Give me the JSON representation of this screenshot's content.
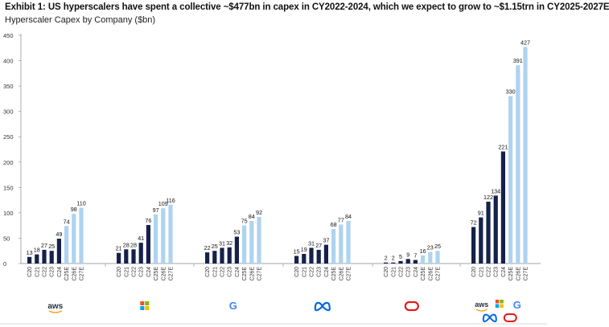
{
  "title": "Exhibit 1: US hyperscalers have spent a collective ~$477bn in capex in CY2022-2024, which we expect to grow to ~$1.15trn in CY2025-2027E",
  "subtitle": "Hyperscaler Capex by Company ($bn)",
  "colors": {
    "actual": "#14214b",
    "estimate": "#aed3ef",
    "axis": "#888888",
    "grid": "#d8d8d8"
  },
  "chart_data": {
    "type": "bar",
    "ylim": [
      0,
      450
    ],
    "yticks": [
      0,
      50,
      100,
      150,
      200,
      250,
      300,
      350,
      400,
      450
    ],
    "groups": [
      {
        "icon": "aws-logo",
        "icon_text": "aws",
        "categories": [
          "C20",
          "C21",
          "C22",
          "C23",
          "C24",
          "C25E",
          "C26E",
          "C27E"
        ],
        "values": [
          13,
          18,
          27,
          25,
          49,
          74,
          98,
          110
        ]
      },
      {
        "icon": "microsoft-logo",
        "icon_text": "",
        "categories": [
          "C20",
          "C21",
          "C22",
          "C23",
          "C24",
          "C25E",
          "C26E",
          "C27E"
        ],
        "values": [
          21,
          28,
          28,
          41,
          76,
          97,
          109,
          116
        ]
      },
      {
        "icon": "google-logo",
        "icon_text": "G",
        "categories": [
          "C20",
          "C21",
          "C22",
          "C23",
          "C24",
          "C25E",
          "C26E",
          "C27E"
        ],
        "values": [
          22,
          25,
          31,
          32,
          53,
          75,
          84,
          92
        ]
      },
      {
        "icon": "meta-logo",
        "icon_text": "",
        "categories": [
          "C20",
          "C21",
          "C22",
          "C23",
          "C24",
          "C25E",
          "C26E",
          "C27E"
        ],
        "values": [
          15,
          19,
          31,
          27,
          37,
          68,
          77,
          84
        ]
      },
      {
        "icon": "oracle-logo",
        "icon_text": "",
        "categories": [
          "C20",
          "C21",
          "C22",
          "C23",
          "C24",
          "C25E",
          "C26E",
          "C27E"
        ],
        "values": [
          2,
          2,
          5,
          9,
          7,
          16,
          23,
          25
        ]
      },
      {
        "icon": "combined-logos",
        "icon_text": "aws",
        "icon_text_2": "G",
        "categories": [
          "C20",
          "C21",
          "C22",
          "C23",
          "C24",
          "C25E",
          "C26E",
          "C27E"
        ],
        "values": [
          72,
          91,
          122,
          134,
          221,
          330,
          391,
          427
        ]
      }
    ]
  }
}
